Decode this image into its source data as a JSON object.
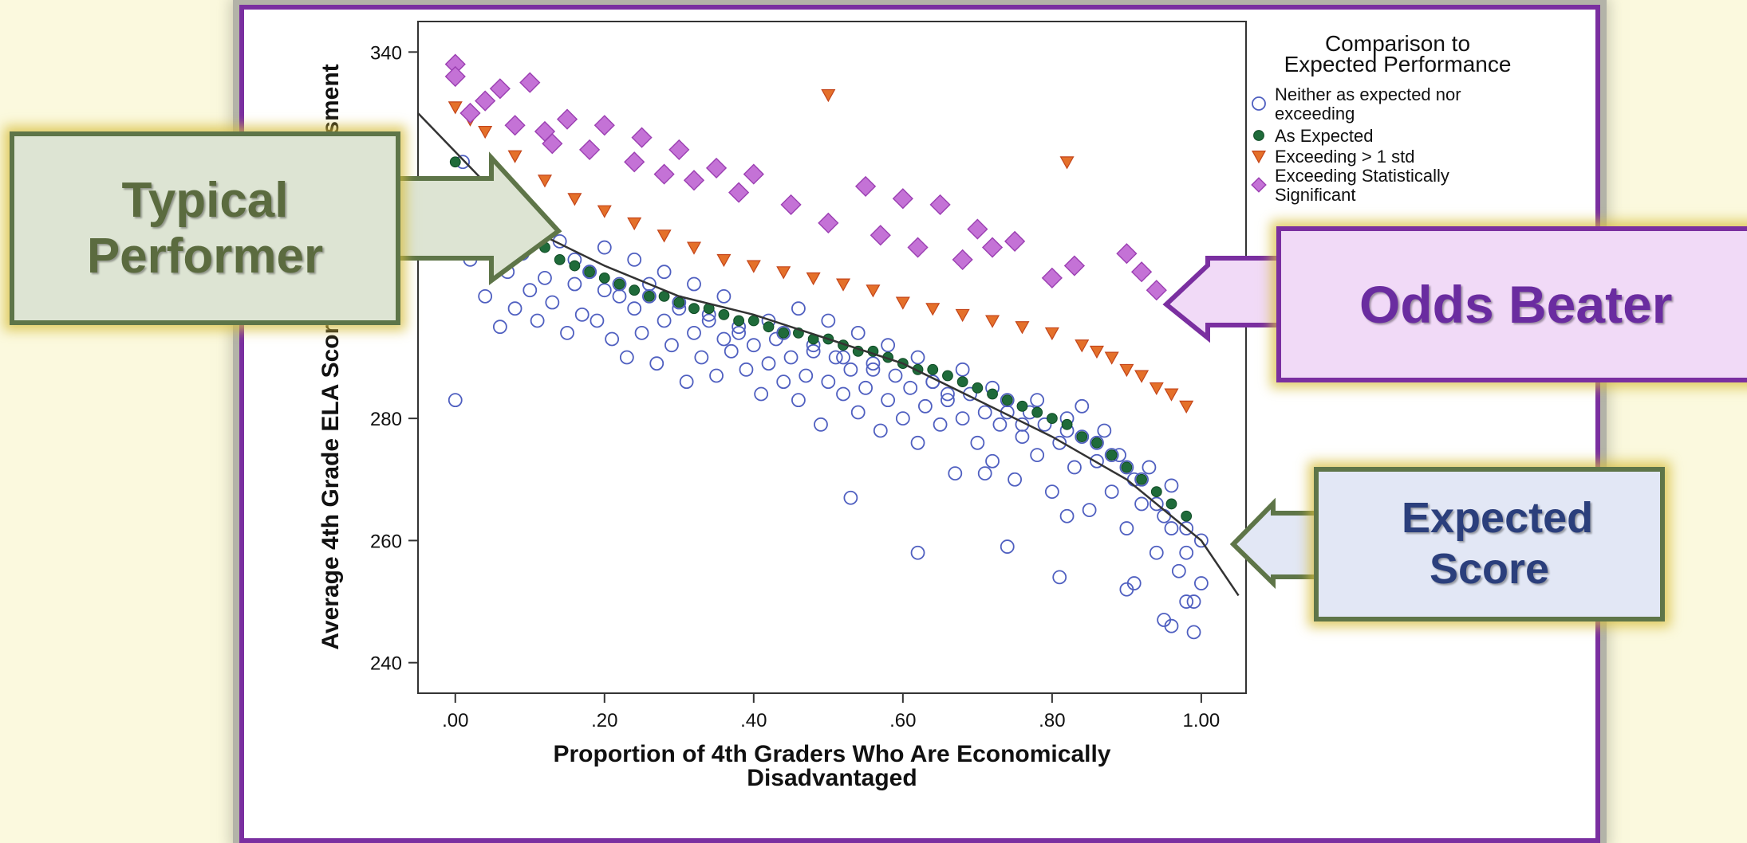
{
  "chart_data": {
    "type": "scatter",
    "xlabel": "Proportion of 4th Graders Who Are Economically Disadvantaged",
    "ylabel": "Average 4th Grade ELA Score on State Assessment",
    "xlim": [
      -0.05,
      1.06
    ],
    "ylim": [
      235,
      345
    ],
    "x_ticks": [
      0,
      0.2,
      0.4,
      0.6,
      0.8,
      1.0
    ],
    "x_tick_labels": [
      ".00",
      ".20",
      ".40",
      ".60",
      ".80",
      "1.00"
    ],
    "y_ticks": [
      240,
      260,
      280,
      340
    ],
    "y_tick_labels": [
      "240",
      "260",
      "280",
      "340"
    ],
    "grid": false,
    "legend_position": "right",
    "legend_title": "Comparison to Expected Performance",
    "trend_line": {
      "x": [
        -0.05,
        0.1,
        0.2,
        0.3,
        0.4,
        0.5,
        0.6,
        0.7,
        0.8,
        0.9,
        1.0,
        1.05
      ],
      "y": [
        330,
        311,
        305,
        300,
        297,
        293,
        289,
        283,
        277,
        270,
        260,
        251
      ]
    },
    "series": [
      {
        "name": "Neither as expected nor exceeding",
        "marker": "circle-open",
        "color": "#4f5fc0",
        "x": [
          0.0,
          0.0,
          0.01,
          0.02,
          0.02,
          0.03,
          0.04,
          0.05,
          0.06,
          0.07,
          0.08,
          0.09,
          0.1,
          0.1,
          0.11,
          0.12,
          0.13,
          0.14,
          0.15,
          0.16,
          0.17,
          0.18,
          0.19,
          0.2,
          0.21,
          0.22,
          0.23,
          0.24,
          0.25,
          0.26,
          0.27,
          0.28,
          0.29,
          0.3,
          0.31,
          0.32,
          0.33,
          0.34,
          0.35,
          0.36,
          0.37,
          0.38,
          0.39,
          0.4,
          0.41,
          0.42,
          0.43,
          0.44,
          0.45,
          0.46,
          0.47,
          0.48,
          0.49,
          0.5,
          0.51,
          0.52,
          0.53,
          0.54,
          0.55,
          0.56,
          0.57,
          0.58,
          0.59,
          0.6,
          0.61,
          0.62,
          0.63,
          0.64,
          0.65,
          0.66,
          0.67,
          0.68,
          0.69,
          0.7,
          0.71,
          0.72,
          0.73,
          0.74,
          0.75,
          0.76,
          0.77,
          0.78,
          0.79,
          0.8,
          0.81,
          0.82,
          0.83,
          0.84,
          0.85,
          0.86,
          0.87,
          0.88,
          0.89,
          0.9,
          0.91,
          0.92,
          0.93,
          0.94,
          0.95,
          0.96,
          0.97,
          0.98,
          0.99,
          1.0,
          0.16,
          0.18,
          0.2,
          0.22,
          0.24,
          0.26,
          0.28,
          0.3,
          0.32,
          0.34,
          0.36,
          0.38,
          0.42,
          0.44,
          0.46,
          0.48,
          0.5,
          0.52,
          0.54,
          0.56,
          0.58,
          0.62,
          0.64,
          0.66,
          0.68,
          0.72,
          0.74,
          0.76,
          0.78,
          0.82,
          0.84,
          0.86,
          0.88,
          0.9,
          0.92,
          0.94,
          0.96,
          0.98,
          0.53,
          0.62,
          0.71,
          0.74,
          0.81,
          0.82,
          0.9,
          0.91,
          0.95,
          0.96,
          0.98,
          0.99,
          1.0
        ],
        "y": [
          283,
          318,
          322,
          312,
          306,
          316,
          300,
          310,
          295,
          304,
          298,
          307,
          301,
          312,
          296,
          303,
          299,
          309,
          294,
          302,
          297,
          304,
          296,
          301,
          293,
          300,
          290,
          298,
          294,
          302,
          289,
          296,
          292,
          299,
          286,
          294,
          290,
          297,
          287,
          293,
          291,
          295,
          288,
          292,
          284,
          289,
          293,
          286,
          290,
          283,
          287,
          291,
          279,
          286,
          290,
          284,
          288,
          281,
          285,
          289,
          278,
          283,
          287,
          280,
          285,
          276,
          282,
          286,
          279,
          283,
          271,
          280,
          284,
          276,
          281,
          273,
          279,
          283,
          270,
          277,
          281,
          274,
          279,
          268,
          276,
          280,
          272,
          277,
          265,
          273,
          278,
          268,
          274,
          262,
          270,
          266,
          272,
          258,
          264,
          269,
          255,
          262,
          250,
          260,
          306,
          304,
          308,
          302,
          306,
          300,
          304,
          298,
          302,
          296,
          300,
          294,
          296,
          294,
          298,
          292,
          296,
          290,
          294,
          288,
          292,
          290,
          286,
          284,
          288,
          285,
          281,
          279,
          283,
          278,
          282,
          276,
          274,
          272,
          270,
          266,
          262,
          258,
          267,
          258,
          271,
          259,
          254,
          264,
          252,
          253,
          247,
          246,
          250,
          245,
          253
        ]
      },
      {
        "name": "As Expected",
        "marker": "circle-filled",
        "color": "#1f6b3a",
        "x": [
          0.0,
          0.02,
          0.04,
          0.06,
          0.08,
          0.1,
          0.12,
          0.14,
          0.16,
          0.18,
          0.2,
          0.22,
          0.24,
          0.26,
          0.28,
          0.3,
          0.32,
          0.34,
          0.36,
          0.38,
          0.4,
          0.42,
          0.44,
          0.46,
          0.48,
          0.5,
          0.52,
          0.54,
          0.56,
          0.58,
          0.6,
          0.62,
          0.64,
          0.66,
          0.68,
          0.7,
          0.72,
          0.74,
          0.76,
          0.78,
          0.8,
          0.82,
          0.84,
          0.86,
          0.88,
          0.9,
          0.92,
          0.94,
          0.96,
          0.98
        ],
        "y": [
          322,
          318,
          316,
          313,
          311,
          309,
          308,
          306,
          305,
          304,
          303,
          302,
          301,
          300,
          300,
          299,
          298,
          298,
          297,
          296,
          296,
          295,
          294,
          294,
          293,
          293,
          292,
          291,
          291,
          290,
          289,
          288,
          288,
          287,
          286,
          285,
          284,
          283,
          282,
          281,
          280,
          279,
          277,
          276,
          274,
          272,
          270,
          268,
          266,
          264
        ]
      },
      {
        "name": "Exceeding > 1 std",
        "marker": "triangle-down",
        "color": "#e4702a",
        "x": [
          0.0,
          0.02,
          0.04,
          0.08,
          0.12,
          0.16,
          0.2,
          0.24,
          0.28,
          0.32,
          0.36,
          0.4,
          0.44,
          0.48,
          0.5,
          0.52,
          0.56,
          0.6,
          0.64,
          0.68,
          0.72,
          0.76,
          0.8,
          0.82,
          0.84,
          0.86,
          0.88,
          0.9,
          0.92,
          0.94,
          0.96,
          0.98
        ],
        "y": [
          331,
          329,
          327,
          323,
          319,
          316,
          314,
          312,
          310,
          308,
          306,
          305,
          304,
          303,
          333,
          302,
          301,
          299,
          298,
          297,
          296,
          295,
          294,
          322,
          292,
          291,
          290,
          288,
          287,
          285,
          284,
          282
        ]
      },
      {
        "name": "Exceeding Statistically Significant",
        "marker": "diamond",
        "color": "#c472d6",
        "x": [
          0.0,
          0.0,
          0.02,
          0.04,
          0.06,
          0.08,
          0.1,
          0.12,
          0.13,
          0.15,
          0.18,
          0.2,
          0.24,
          0.25,
          0.28,
          0.3,
          0.32,
          0.35,
          0.38,
          0.4,
          0.45,
          0.5,
          0.55,
          0.57,
          0.6,
          0.62,
          0.65,
          0.68,
          0.7,
          0.72,
          0.75,
          0.8,
          0.83,
          0.9,
          0.92,
          0.94,
          0.98,
          1.0
        ],
        "y": [
          338,
          336,
          330,
          332,
          334,
          328,
          335,
          327,
          325,
          329,
          324,
          328,
          322,
          326,
          320,
          324,
          319,
          321,
          317,
          320,
          315,
          312,
          318,
          310,
          316,
          308,
          315,
          306,
          311,
          308,
          309,
          303,
          305,
          307,
          304,
          301,
          299,
          296
        ]
      }
    ]
  },
  "callouts": {
    "typical_performer": "Typical Performer",
    "odds_beater": "Odds Beater",
    "expected_score": "Expected Score"
  }
}
